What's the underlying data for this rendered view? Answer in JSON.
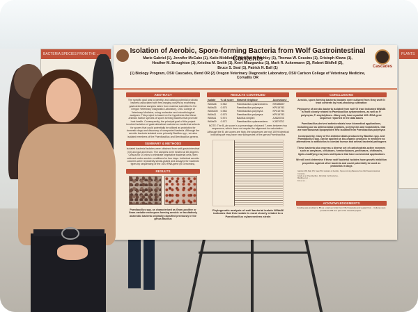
{
  "poster": {
    "title": "Isolation of Aerobic, Spore-forming Bacteria from Wolf Gastrointestinal Contents",
    "authors_line1": "Marie Gabriel (1), Jennifer McCabe (1), Katie Middleton (1), Ariel N. Atchley (1), Thomas W. Cousins (1), Cristoph Klews (1),",
    "authors_line2": "Heather M. Broughton (1), Kristina M. Smith (1), Kerri Miazgowicz (1), Mark R. Ackermann (2), Robert Bildfell (2),",
    "authors_line3": "Bruce S. Seal (1), Patrick N. Ball (1)",
    "affiliations": "(1) Biology Program, OSU Cascades, Bend OR (2) Oregon Veterinary Diagnostic Laboratory, OSU Carlson College of Veterinary Medicine, Corvallis OR",
    "logo_text": "Cascades",
    "sections": {
      "abstract": "ABSTRACT",
      "methods": "SUMMARY & METHODS",
      "results_left": "RESULTS",
      "results_cont": "RESULTS CONTINUED",
      "conclusions": "CONCLUSIONS",
      "acknowledgements": "ACKNOWLEDGEMENTS"
    },
    "abstract_text": "The specific goal was to identify, and catalog potential probiotic bacteria associated with free-ranging wolves by examining gastrointestinal samples taken from material submitted to the Oregon Veterinary Diagnostic Laboratory, OSU College of Veterinary Medicine, using molecular and microbiological analyses. This project is based on the hypothesis that these animals harbor species of spore-forming bacteria that promote host health. Consequently, the principal goal of this project involved isolation of gastrointestinal material on media that selects for spores that could potentially be utilized as probiotics for domestic dogs and discovery of unreported bacteria. Although the aerobic bacteria isolated were primarily Bacillus spp., we also isolated members of the Paenibacillus and Brevibacillus genera.",
    "methods_text": "Isolated bacterial isolates were obtained from wolf gastrointestinal (GI) and gut and ileum. The samples were heated at 80 degrees Celsius for 20 mins to eliminate vegetative bacterial cells, then cultured under aerobic conditions for four days. Individual aerobic colonies were repeatedly streak-plated and assayed for bacterial types by sequencing of the 16S rRNA gene (B Genomics).",
    "micro_caption": "Paenibacillus spp. as characterized as Gram-positive or Gram-variable endospore-forming aerobic or facultatively anaerobic bacteria originally classified previously in the genus Bacillus",
    "results_table": {
      "headers": [
        "Isolate",
        "% ab score",
        "Nearest Neighbor",
        "Accession#"
      ],
      "rows": [
        [
          "WWa26",
          "0.962",
          "Paenibacillus xylanexedens",
          "KR088557"
        ],
        [
          "WWa35",
          "0.975",
          "Paenibacillus polymyxa",
          "KP019793"
        ],
        [
          "WWa100",
          "0.983",
          "Paenibacillus polymyxa",
          "KP019793"
        ],
        [
          "WWa11",
          "0.975",
          "Paenibacillus polymyxa",
          "KP019793"
        ],
        [
          "WWa11",
          "0.974",
          "Bacillus simplex",
          "AJ628746"
        ],
        [
          "WWa09",
          "0.972",
          "Paenibacillus xylanexedens",
          "KJ879752"
        ]
      ]
    },
    "results_note": "NOTE: The B_ab score is a percentage of shared 7-mers between two sequences, which does not require the alignment for calculation - Although the B_ab scores are high, the sequences are not 100% identical indicating we may have new subspecies of the genus Paenibacillus",
    "tree_caption": "Phylogenetic analysis of wolf bacterial isolate WWa36 indicates that this isolate is most closely related to a Paenibacillus xylanexedens strain",
    "conclusions_1": "Aerobic, spore-forming bacterial isolates were cultured from Gray wolf GI tract contents by heat-shocking cultivation",
    "conclusions_2": "Phylogeny of aerobic bacteria isolated from wolf GI tract indicated WWa36 is most closely related to Paenibacillus xylanexedens, as well as P. polymyxa, P. amylolyticus - Many only have a partial 16S rRNA gene sequence reported in the data bases",
    "conclusions_3": "Paenibacillus-derived antimicrobials have biomedical applications, including use as antimicrobial peptides, polymyxins and fusaricidins, that are nonribosomal lipopeptides first isolated from Paenibacillus polymyxa",
    "conclusions_4": "Consequently, many of the antimicrobials produced by Bacillus spp. and Paenibacillus spp. can be applied as bio-organic products in medicine as alternatives to antibiotics to combat human and animal bacterial pathogens",
    "conclusions_5": "These bacteria also express a diverse set of carbohydrate-active enzymes such as amylases, cellulases, hemicellulases, pectinases, chitinases, lignin-modifying enzymes and lipases that have commercial applications",
    "conclusions_6": "We will next determine if these wolf bacterial isolates have growth inhibition properties against other bacteria and could potentially be used as probiotics in dogs",
    "references": "Gabriel, MR, Ball, PN, Seal, BS. Isolation of Aerobic, Spore-forming Bacteria from Wolf Gastrointestinal Contents...\nGrady et al. Paenibacillus. Microbial Cell Factories...\nMeidley et al. ...\nKim et al. ...",
    "acknowledgements_text": "Funding was provided to BS as a start-up funds from OSU Cascades and a grant from... Cultures were provided to PB as a part of his research project..."
  },
  "background_posters": [
    {
      "title": "BACTERIA SPECIES FROM THE ..."
    },
    {
      "title": "PLANTS"
    }
  ],
  "colors": {
    "poster_background": "#f4e9d8",
    "section_header": "#c1523a",
    "brand_orange": "#a0331e"
  }
}
